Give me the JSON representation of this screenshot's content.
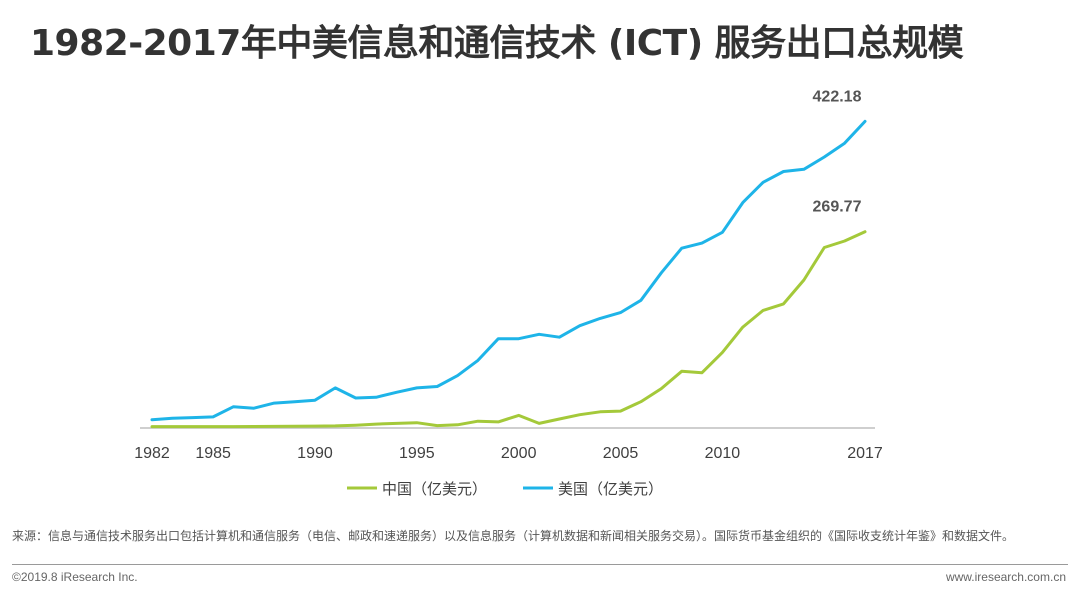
{
  "page": {
    "title": "1982-2017年中美信息和通信技术 (ICT) 服务出口总规模",
    "source": "来源：信息与通信技术服务出口包括计算机和通信服务（电信、邮政和速递服务）以及信息服务（计算机数据和新闻相关服务交易）。国际货币基金组织的《国际收支统计年鉴》和数据文件。",
    "copyright": "©2019.8 iResearch Inc.",
    "website": "www.iresearch.com.cn"
  },
  "colors": {
    "china": "#a4c93a",
    "usa": "#1eb4e8",
    "axis": "#bfbfbf",
    "text": "#404040"
  },
  "chart_data": {
    "type": "line",
    "title": "1982-2017年中美信息和通信技术 (ICT) 服务出口总规模",
    "xlabel": "",
    "ylabel": "",
    "x": [
      1982,
      1983,
      1984,
      1985,
      1986,
      1987,
      1988,
      1989,
      1990,
      1991,
      1992,
      1993,
      1994,
      1995,
      1996,
      1997,
      1998,
      1999,
      2000,
      2001,
      2002,
      2003,
      2004,
      2005,
      2006,
      2007,
      2008,
      2009,
      2010,
      2011,
      2012,
      2013,
      2014,
      2015,
      2016,
      2017
    ],
    "x_ticks": [
      "1982",
      "1985",
      "1990",
      "1995",
      "2000",
      "2005",
      "2010",
      "2017"
    ],
    "ylim": [
      0,
      460
    ],
    "grid": false,
    "legend_position": "bottom",
    "series": [
      {
        "name": "中国（亿美元）",
        "key": "china",
        "values": [
          0.5,
          0.5,
          0.5,
          0.5,
          0.6,
          0.7,
          0.8,
          1,
          1.2,
          1.5,
          2.5,
          4,
          5,
          6,
          2,
          3,
          8,
          7,
          16,
          5,
          11,
          17,
          21,
          22,
          35,
          53,
          77,
          75,
          103,
          138,
          161,
          170,
          203,
          248,
          257,
          269.77
        ],
        "end_label": "269.77"
      },
      {
        "name": "美国（亿美元）",
        "key": "usa",
        "values": [
          10,
          12,
          13,
          14,
          28,
          26,
          33,
          35,
          37,
          54,
          40,
          41,
          48,
          54,
          56,
          71,
          92,
          122,
          122,
          128,
          124,
          140,
          150,
          158,
          175,
          213,
          247,
          254,
          269,
          310,
          338,
          353,
          356,
          373,
          392,
          422.18
        ],
        "end_label": "422.18"
      }
    ]
  }
}
